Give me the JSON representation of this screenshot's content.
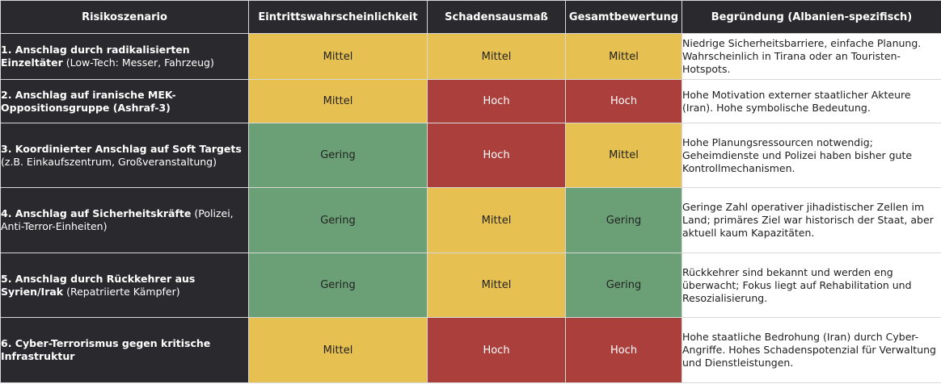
{
  "headers": [
    "Risikoszenario",
    "Eintrittswahrscheinlichkeit",
    "Schadensausmaß",
    "Gesamtbewertung",
    "Begründung (Albanien-spezifisch)"
  ],
  "colors": {
    "header_bg": "#2a2a2e",
    "Mittel": "#e7c052",
    "Hoch": "#aa3f3c",
    "Gering": "#6ba076"
  },
  "rows": [
    {
      "title": "1. Anschlag durch radikalisierten Einzeltäter",
      "detail": "(Low-Tech: Messer, Fahrzeug)",
      "probability": "Mittel",
      "impact": "Mittel",
      "overall": "Mittel",
      "reason": "Niedrige Sicherheitsbarriere, einfache Planung. Wahrscheinlich in Tirana oder an Touristen-Hotspots."
    },
    {
      "title": "2. Anschlag auf iranische MEK-Oppositionsgruppe (Ashraf-3)",
      "detail": "",
      "probability": "Mittel",
      "impact": "Hoch",
      "overall": "Hoch",
      "reason": "Hohe Motivation externer staatlicher Akteure (Iran). Hohe symbolische Bedeutung."
    },
    {
      "title": "3. Koordinierter Anschlag auf Soft Targets",
      "detail": "(z.B. Einkaufszentrum, Großveranstaltung)",
      "probability": "Gering",
      "impact": "Hoch",
      "overall": "Mittel",
      "reason": "Hohe Planungsressourcen notwendig; Geheimdienste und Polizei haben bisher gute Kontrollmechanismen."
    },
    {
      "title": "4. Anschlag auf Sicherheitskräfte",
      "detail": "(Polizei, Anti-Terror-Einheiten)",
      "probability": "Gering",
      "impact": "Mittel",
      "overall": "Gering",
      "reason": "Geringe Zahl operativer jihadistischer Zellen im Land; primäres Ziel war historisch der Staat, aber aktuell kaum Kapazitäten."
    },
    {
      "title": "5. Anschlag durch Rückkehrer aus Syrien/Irak",
      "detail": "(Repatriierte Kämpfer)",
      "probability": "Gering",
      "impact": "Mittel",
      "overall": "Gering",
      "reason": "Rückkehrer sind bekannt und werden eng überwacht; Fokus liegt auf Rehabilitation und Resozialisierung."
    },
    {
      "title": "6. Cyber-Terrorismus gegen kritische Infrastruktur",
      "detail": "",
      "probability": "Mittel",
      "impact": "Hoch",
      "overall": "Hoch",
      "reason": "Hohe staatliche Bedrohung (Iran) durch Cyber-Angriffe. Hohes Schadenspotenzial für Verwaltung und Dienstleistungen."
    }
  ]
}
